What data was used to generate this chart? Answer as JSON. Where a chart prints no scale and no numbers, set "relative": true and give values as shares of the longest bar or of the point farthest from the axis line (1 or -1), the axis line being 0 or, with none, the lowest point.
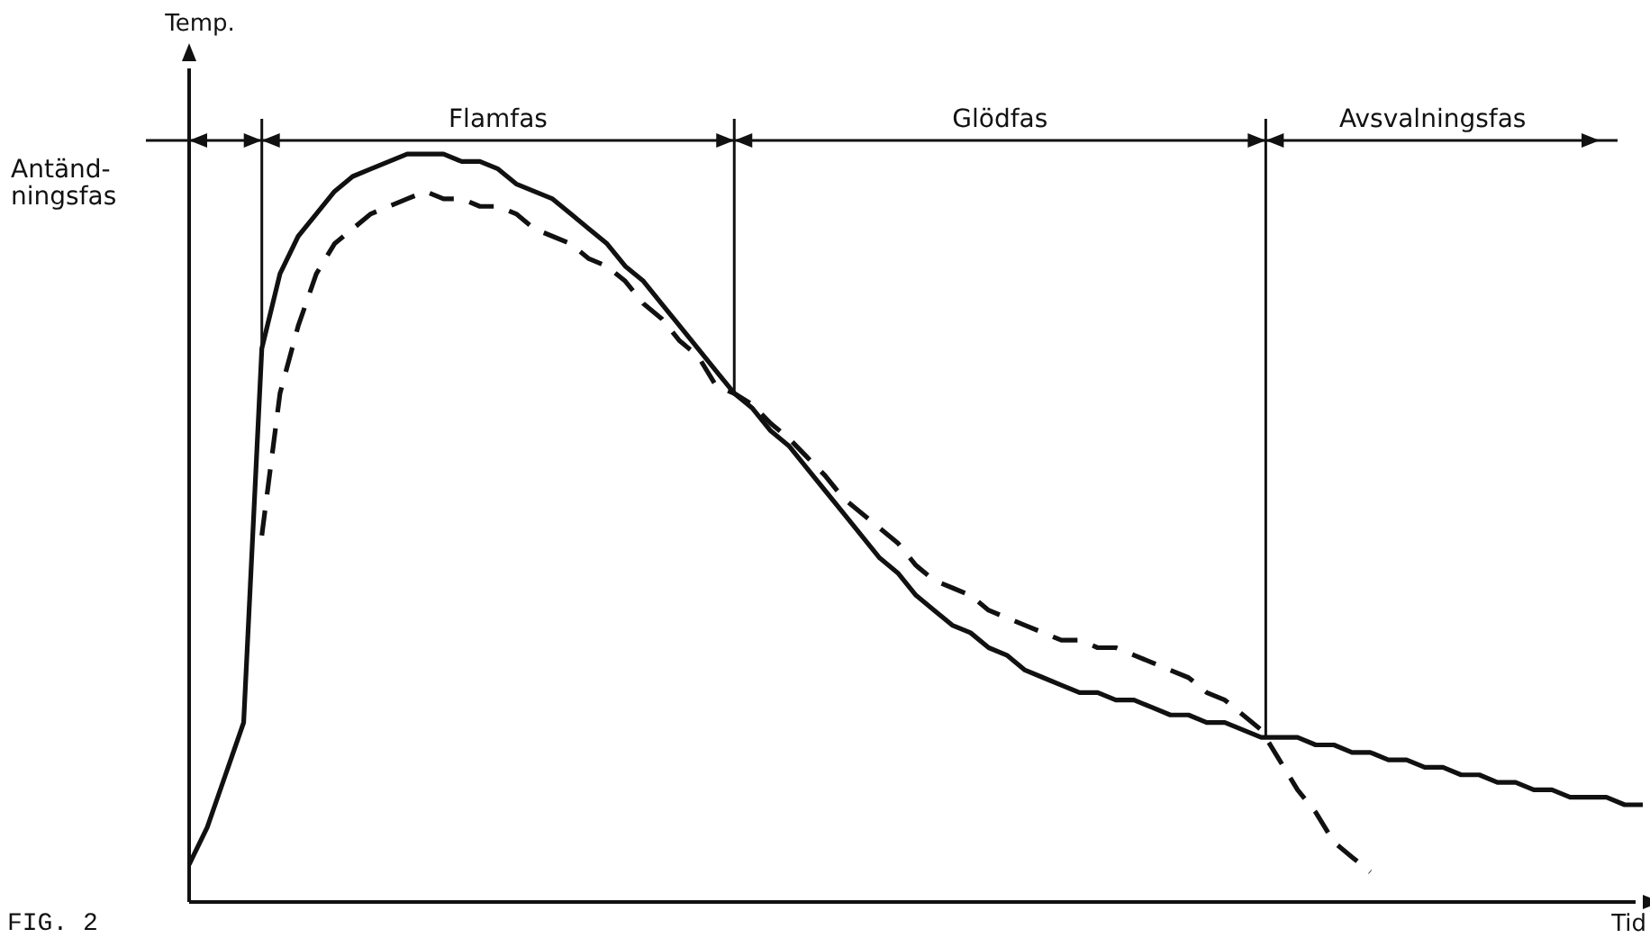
{
  "chart_data": {
    "type": "line",
    "relative": true,
    "xlabel": "Tid",
    "ylabel": "Temp.",
    "tick_labels": false,
    "grid": false,
    "legend": false,
    "marker": "none",
    "categories": [
      null,
      null,
      null,
      null,
      null,
      null,
      null,
      null,
      null,
      null,
      null,
      null,
      null,
      null,
      null,
      null,
      null,
      null,
      null,
      null,
      null,
      null,
      null,
      null,
      null,
      null,
      null,
      null,
      null,
      null,
      null,
      null,
      null,
      null,
      null,
      null,
      null,
      null,
      null,
      null,
      null,
      null,
      null,
      null,
      null,
      null,
      null,
      null,
      null,
      null,
      null,
      null,
      null,
      null,
      null,
      null,
      null,
      null,
      null,
      null,
      null,
      null,
      null,
      null,
      null,
      null,
      null,
      null,
      null,
      null,
      null,
      null,
      null,
      null,
      null,
      null,
      null,
      null,
      null,
      null,
      null
    ],
    "series": [
      {
        "color": "#111111",
        "line_style": "solid",
        "values": [
          0.05,
          0.1,
          0.17,
          0.24,
          0.74,
          0.84,
          0.89,
          0.92,
          0.95,
          0.97,
          0.98,
          0.99,
          1.0,
          1.0,
          1.0,
          0.99,
          0.99,
          0.98,
          0.96,
          0.95,
          0.94,
          0.92,
          0.9,
          0.88,
          0.85,
          0.83,
          0.8,
          0.77,
          0.74,
          0.71,
          0.68,
          0.66,
          0.63,
          0.61,
          0.58,
          0.55,
          0.52,
          0.49,
          0.46,
          0.44,
          0.41,
          0.39,
          0.37,
          0.36,
          0.34,
          0.33,
          0.31,
          0.3,
          0.29,
          0.28,
          0.28,
          0.27,
          0.27,
          0.26,
          0.25,
          0.25,
          0.24,
          0.24,
          0.23,
          0.22,
          0.22,
          0.22,
          0.21,
          0.21,
          0.2,
          0.2,
          0.19,
          0.19,
          0.18,
          0.18,
          0.17,
          0.17,
          0.16,
          0.16,
          0.15,
          0.15,
          0.14,
          0.14,
          0.14,
          0.13,
          0.13
        ]
      },
      {
        "color": "#111111",
        "line_style": "dashed",
        "values": [
          null,
          null,
          null,
          null,
          0.49,
          0.68,
          0.77,
          0.84,
          0.88,
          0.9,
          0.92,
          0.93,
          0.94,
          0.95,
          0.94,
          0.94,
          0.93,
          0.93,
          0.92,
          0.9,
          0.89,
          0.88,
          0.86,
          0.85,
          0.83,
          0.8,
          0.78,
          0.75,
          0.73,
          0.69,
          0.68,
          0.665,
          0.64,
          0.62,
          0.595,
          0.57,
          0.54,
          0.52,
          0.5,
          0.48,
          0.45,
          0.43,
          0.42,
          0.41,
          0.39,
          0.38,
          0.37,
          0.36,
          0.35,
          0.35,
          0.34,
          0.34,
          0.33,
          0.32,
          0.31,
          0.3,
          0.28,
          0.27,
          0.25,
          0.23,
          0.19,
          0.15,
          0.12,
          0.08,
          0.06,
          0.04,
          null,
          null,
          null,
          null,
          null,
          null,
          null,
          null,
          null,
          null,
          null,
          null,
          null,
          null,
          null
        ]
      }
    ],
    "annotations": [
      "Antänd-\nningsfas",
      "Flamfas",
      "Glödfas",
      "Avsvalningsfas",
      "FIG. 2"
    ]
  }
}
